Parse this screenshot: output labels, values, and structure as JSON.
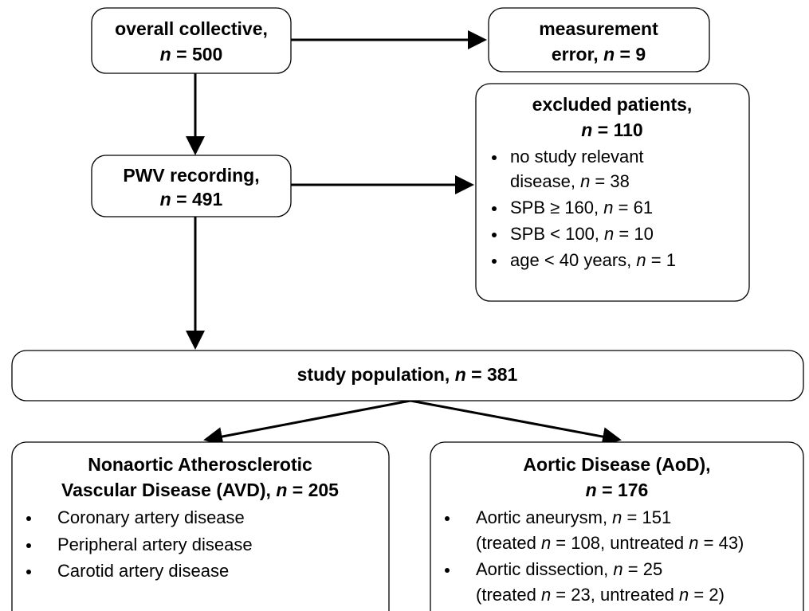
{
  "nodes": [
    {
      "lines": [
        "overall collective,",
        "n = 500"
      ]
    },
    {
      "lines": [
        "measurement",
        "error, n = 9"
      ]
    },
    {
      "lines": [
        "PWV recording,",
        "n = 491"
      ]
    },
    {
      "lines": [
        "excluded patients,",
        "n = 110"
      ],
      "bullets": [
        {
          "lines": [
            "no study relevant",
            "disease, n = 38"
          ]
        },
        {
          "lines": [
            "SPB ≥ 160, n = 61"
          ]
        },
        {
          "lines": [
            "SPB < 100, n = 10"
          ]
        },
        {
          "lines": [
            "age < 40 years, n = 1"
          ]
        }
      ]
    },
    {
      "lines": [
        "study population, n = 381"
      ]
    },
    {
      "lines": [
        "Nonaortic Atherosclerotic",
        "Vascular Disease (AVD), n = 205"
      ],
      "bullets": [
        {
          "lines": [
            "Coronary artery disease"
          ]
        },
        {
          "lines": [
            "Peripheral artery disease"
          ]
        },
        {
          "lines": [
            "Carotid artery disease"
          ]
        }
      ]
    },
    {
      "lines": [
        "Aortic Disease (AoD),",
        "n = 176"
      ],
      "bullets": [
        {
          "lines": [
            "Aortic aneurysm, n = 151",
            "(treated n = 108, untreated n = 43)"
          ]
        },
        {
          "lines": [
            "Aortic dissection, n = 25",
            "(treated n = 23, untreated n = 2)"
          ]
        }
      ]
    }
  ]
}
